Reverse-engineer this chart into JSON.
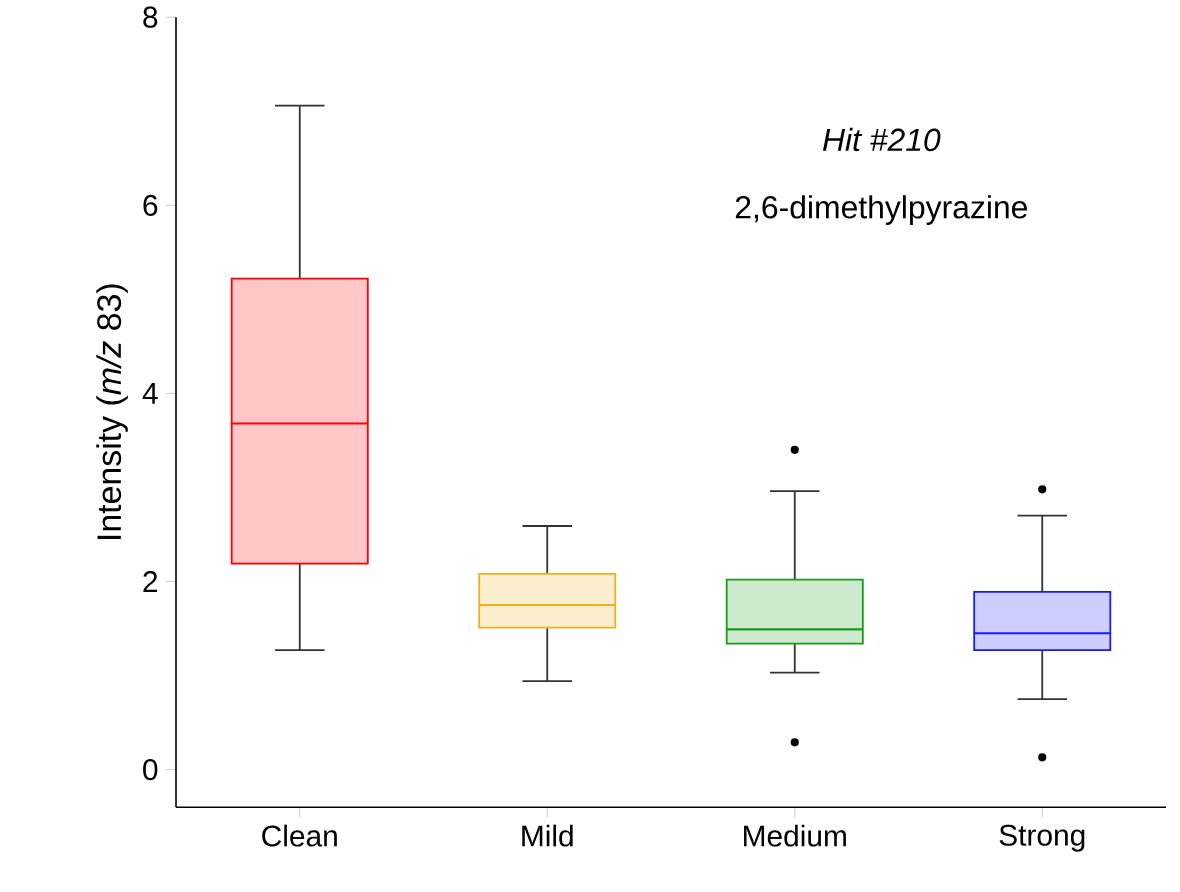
{
  "chart_data": {
    "type": "box",
    "ylabel": "Intensity (*m/z* 83)",
    "categories": [
      "Clean",
      "Mild",
      "Medium",
      "Strong"
    ],
    "colors": [
      "#ff0000",
      "#edb120",
      "#1a9a1a",
      "#1a1aff"
    ],
    "boxes": [
      {
        "low": 1.27,
        "q1": 2.19,
        "median": 3.68,
        "q3": 5.22,
        "high": 7.06
      },
      {
        "low": 0.94,
        "q1": 1.51,
        "median": 1.75,
        "q3": 2.08,
        "high": 2.59
      },
      {
        "low": 1.03,
        "q1": 1.34,
        "median": 1.49,
        "q3": 2.02,
        "high": 2.96,
        "outliers": [
          3.4,
          0.29
        ]
      },
      {
        "low": 0.75,
        "q1": 1.27,
        "median": 1.45,
        "q3": 1.89,
        "high": 2.7,
        "outliers": [
          2.98,
          0.13
        ]
      }
    ],
    "ylim": [
      -0.4,
      8
    ],
    "yticks": [
      0,
      2,
      4,
      6,
      8
    ],
    "annotations": [
      "Hit #210",
      "2,6-dimethylpyrazine"
    ]
  }
}
